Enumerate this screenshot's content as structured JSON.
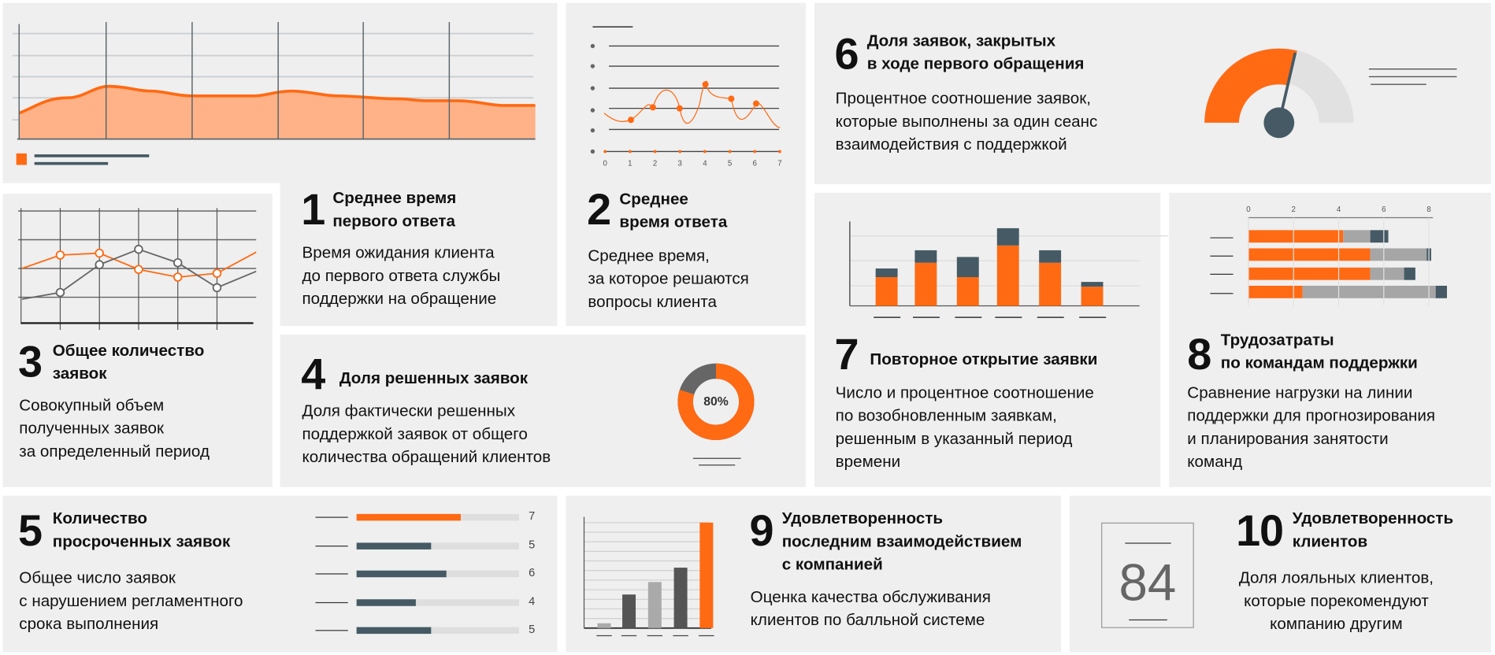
{
  "colors": {
    "accent": "#ff6a13",
    "dark": "#455a64",
    "panel": "#efefef"
  },
  "kpis": [
    {
      "number": "1",
      "title": [
        "Среднее время",
        "первого ответа"
      ],
      "text": [
        "Время ожидания клиента",
        "до первого ответа службы",
        "поддержки на обращение"
      ]
    },
    {
      "number": "2",
      "title": [
        "Среднее",
        "время ответа"
      ],
      "text": [
        "Среднее время,",
        "за которое решаются",
        "вопросы клиента"
      ]
    },
    {
      "number": "3",
      "title": [
        "Общее количество",
        "заявок"
      ],
      "text": [
        "Совокупный объем",
        "полученных заявок",
        "за определенный период"
      ]
    },
    {
      "number": "4",
      "title": [
        "Доля решенных заявок"
      ],
      "text": [
        "Доля фактически решенных",
        "поддержкой заявок от общего",
        "количества обращений клиентов"
      ]
    },
    {
      "number": "5",
      "title": [
        "Количество",
        "просроченных заявок"
      ],
      "text": [
        "Общее число заявок",
        "с нарушением регламентного",
        "срока выполнения"
      ]
    },
    {
      "number": "6",
      "title": [
        "Доля заявок, закрытых",
        "в ходе первого обращения"
      ],
      "text": [
        "Процентное соотношение заявок,",
        "которые выполнены за один сеанс",
        "взаимодействия с поддержкой"
      ]
    },
    {
      "number": "7",
      "title": [
        "Повторное открытие заявки"
      ],
      "text": [
        "Число и процентное соотношение",
        "по возобновленным заявкам,",
        "решенным в указанный период",
        "времени"
      ]
    },
    {
      "number": "8",
      "title": [
        "Трудозатраты",
        "по командам поддержки"
      ],
      "text": [
        "Сравнение нагрузки на линии",
        "поддержки для прогнозирования",
        "и планирования занятости",
        "команд"
      ]
    },
    {
      "number": "9",
      "title": [
        "Удовлетворенность",
        "последним взаимодействием",
        "с компанией"
      ],
      "text": [
        "Оценка качества обслуживания",
        "клиентов по балльной системе"
      ]
    },
    {
      "number": "10",
      "title": [
        "Удовлетворенность",
        "клиентов"
      ],
      "text": [
        "Доля лояльных клиентов,",
        "которые порекомендуют",
        "компанию другим"
      ]
    }
  ],
  "response_chart": {
    "x_ticks": [
      "0",
      "1",
      "2",
      "3",
      "4",
      "5",
      "6",
      "7"
    ]
  },
  "donut": {
    "label": "80%",
    "value": 80
  },
  "overdue_bars": {
    "values": [
      7,
      5,
      6,
      4,
      5
    ],
    "labels": [
      "7",
      "5",
      "6",
      "4",
      "5"
    ],
    "highlight_index": 0
  },
  "workload_chart": {
    "x_ticks": [
      "0",
      "2",
      "4",
      "6",
      "8"
    ],
    "rows": [
      [
        4.2,
        1.2,
        0.8
      ],
      [
        5.4,
        2.5,
        0.2
      ],
      [
        5.4,
        1.5,
        0.5
      ],
      [
        2.4,
        5.9,
        0.5
      ]
    ]
  },
  "satisfaction_score": "84"
}
